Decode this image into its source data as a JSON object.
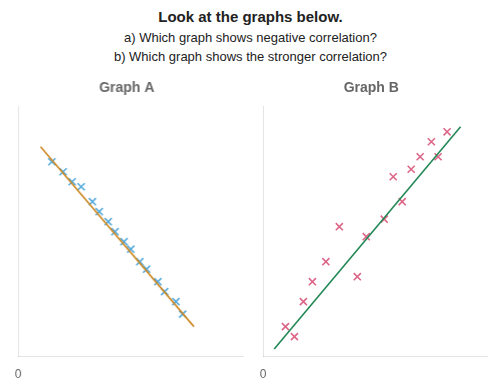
{
  "title": "Look at the graphs below.",
  "annotations": [
    "a) Which graph shows negative correlation?",
    "b) Which graph shows the stronger correlation?"
  ],
  "chart_data": [
    {
      "type": "scatter",
      "title": "Graph A",
      "xlim": [
        0,
        1
      ],
      "ylim": [
        0,
        1
      ],
      "xticks": [
        0
      ],
      "yticks": [],
      "tick_labels": "x",
      "grid": false,
      "series": [
        {
          "type": "line",
          "color": "#CC8822",
          "line_style": "solid",
          "x": [
            0.1,
            0.78
          ],
          "values": [
            0.84,
            0.12
          ]
        },
        {
          "type": "scatter",
          "color": "#55AADD",
          "marker": "x",
          "x": [
            0.15,
            0.2,
            0.24,
            0.28,
            0.33,
            0.36,
            0.4,
            0.43,
            0.47,
            0.5,
            0.54,
            0.57,
            0.62,
            0.65,
            0.7,
            0.73
          ],
          "values": [
            0.78,
            0.74,
            0.7,
            0.68,
            0.62,
            0.58,
            0.54,
            0.5,
            0.46,
            0.43,
            0.38,
            0.35,
            0.3,
            0.26,
            0.22,
            0.17
          ]
        }
      ]
    },
    {
      "type": "scatter",
      "title": "Graph B",
      "xlim": [
        0,
        1
      ],
      "ylim": [
        0,
        1
      ],
      "xticks": [
        0
      ],
      "yticks": [],
      "tick_labels": "x",
      "grid": false,
      "series": [
        {
          "type": "line",
          "color": "#228855",
          "line_style": "solid",
          "x": [
            0.05,
            0.88
          ],
          "values": [
            0.03,
            0.92
          ]
        },
        {
          "type": "scatter",
          "color": "#DD6688",
          "marker": "x",
          "x": [
            0.1,
            0.14,
            0.18,
            0.22,
            0.28,
            0.34,
            0.42,
            0.46,
            0.54,
            0.58,
            0.62,
            0.66,
            0.7,
            0.75,
            0.78,
            0.82
          ],
          "values": [
            0.12,
            0.08,
            0.22,
            0.3,
            0.38,
            0.52,
            0.32,
            0.48,
            0.55,
            0.72,
            0.62,
            0.75,
            0.8,
            0.86,
            0.8,
            0.9
          ]
        }
      ]
    }
  ]
}
